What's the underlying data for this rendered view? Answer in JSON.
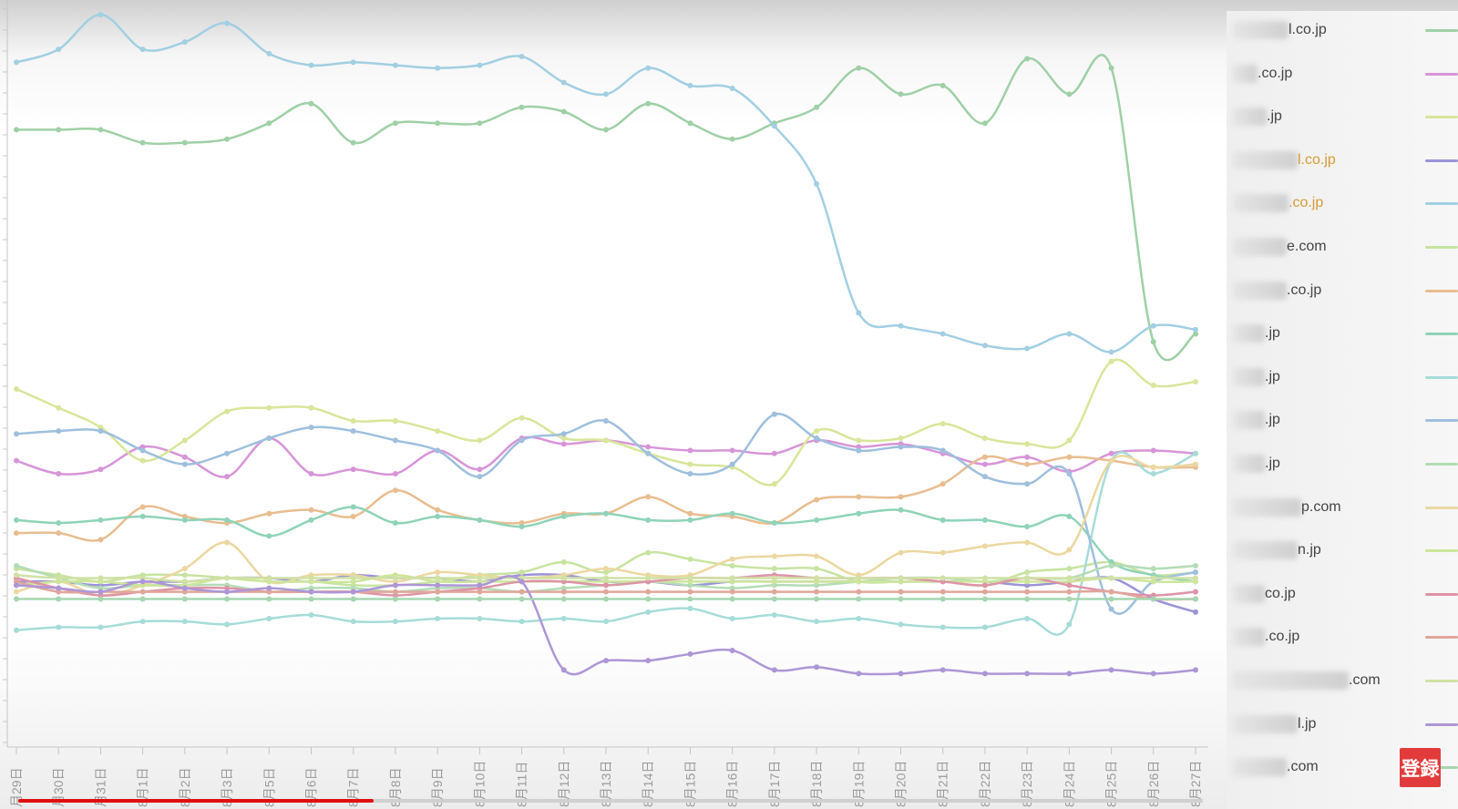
{
  "colors": {
    "accent": "#e23b3b",
    "progress": "#e01010"
  },
  "overlay": {
    "register_label": "登録",
    "progress_fraction": 0.3
  },
  "chart_data": {
    "type": "line",
    "title": "",
    "xlabel": "",
    "ylabel": "",
    "grid": false,
    "legend_placement": "right",
    "x": [
      "月29日",
      "月30日",
      "月31日",
      "8月1日",
      "8月2日",
      "8月3日",
      "8月5日",
      "8月6日",
      "8月7日",
      "8月8日",
      "8月9日",
      "8月10日",
      "8月11日",
      "8月12日",
      "8月13日",
      "8月14日",
      "8月15日",
      "8月16日",
      "8月17日",
      "8月18日",
      "8月19日",
      "8月20日",
      "8月21日",
      "8月22日",
      "8月23日",
      "8月24日",
      "8月25日",
      "8月26日",
      "8月27日"
    ],
    "ylim": [
      0,
      100
    ],
    "series": [
      {
        "name": "l.co.jp",
        "color": "#9fd0a6",
        "values": [
          83.1,
          83.1,
          83.1,
          81.3,
          81.3,
          81.8,
          84.0,
          86.7,
          81.3,
          84.0,
          84.0,
          84.0,
          86.2,
          85.6,
          83.1,
          86.7,
          84.0,
          81.8,
          84.0,
          86.2,
          91.6,
          88.0,
          89.2,
          84.0,
          92.9,
          88.0,
          91.6,
          53.8,
          54.9
        ]
      },
      {
        "name": ".co.jp",
        "color": "#d795d8",
        "values": [
          37.4,
          35.6,
          36.2,
          39.3,
          37.9,
          35.2,
          40.5,
          35.6,
          36.2,
          35.6,
          38.8,
          36.2,
          40.5,
          39.7,
          40.2,
          39.3,
          38.8,
          38.8,
          38.4,
          40.2,
          39.3,
          39.7,
          38.4,
          36.9,
          37.9,
          35.9,
          38.4,
          38.8,
          38.4
        ]
      },
      {
        "name": ".jp",
        "color": "#d7e69a",
        "values": [
          47.3,
          44.7,
          42.0,
          37.4,
          40.2,
          44.2,
          44.7,
          44.7,
          42.9,
          42.9,
          41.5,
          40.2,
          43.3,
          40.5,
          40.2,
          38.4,
          36.9,
          36.5,
          34.2,
          41.5,
          40.2,
          40.5,
          42.5,
          40.5,
          39.7,
          40.2,
          51.1,
          47.8,
          48.3
        ]
      },
      {
        "name": "l.co.jp",
        "color": "#9b93d8",
        "values": [
          20.7,
          20.7,
          20.2,
          20.7,
          20.7,
          21.2,
          21.2,
          20.7,
          21.6,
          21.2,
          21.2,
          20.7,
          21.6,
          21.6,
          20.7,
          20.7,
          20.2,
          20.7,
          20.7,
          20.7,
          20.7,
          20.7,
          20.7,
          20.7,
          20.2,
          20.7,
          21.2,
          18.3,
          16.5
        ]
      },
      {
        "name": ".co.jp",
        "color": "#a2cfe2",
        "values": [
          92.4,
          94.2,
          99.0,
          94.2,
          95.2,
          97.8,
          93.6,
          92.0,
          92.4,
          92.0,
          91.6,
          92.0,
          93.2,
          89.6,
          88.0,
          91.6,
          89.2,
          88.8,
          83.6,
          75.6,
          57.8,
          56.0,
          54.9,
          53.3,
          52.9,
          54.9,
          52.4,
          56.0,
          55.5
        ]
      },
      {
        "name": "e.com",
        "color": "#c7e3a0",
        "values": [
          22.5,
          21.6,
          20.7,
          21.6,
          21.6,
          21.2,
          20.7,
          20.7,
          20.2,
          20.2,
          20.7,
          21.6,
          22.0,
          23.4,
          22.0,
          24.7,
          23.8,
          22.9,
          22.5,
          22.5,
          20.7,
          20.7,
          20.7,
          20.2,
          22.0,
          22.5,
          23.4,
          21.6,
          22.0
        ]
      },
      {
        "name": ".co.jp",
        "color": "#e8bd90",
        "values": [
          27.4,
          27.4,
          26.5,
          31.0,
          29.7,
          28.8,
          30.1,
          30.6,
          29.7,
          33.3,
          30.6,
          29.2,
          28.8,
          30.1,
          30.1,
          32.4,
          30.1,
          29.7,
          28.8,
          32.0,
          32.4,
          32.4,
          34.2,
          37.9,
          36.9,
          37.9,
          37.4,
          36.5,
          36.5
        ]
      },
      {
        "name": ".jp",
        "color": "#8fd3b8",
        "values": [
          29.2,
          28.8,
          29.2,
          29.7,
          29.2,
          29.2,
          27.0,
          29.2,
          31.0,
          28.8,
          29.7,
          29.2,
          28.3,
          29.7,
          30.1,
          29.2,
          29.2,
          30.1,
          28.8,
          29.2,
          30.1,
          30.6,
          29.2,
          29.2,
          28.3,
          29.7,
          23.4,
          21.6,
          20.7
        ]
      },
      {
        "name": ".jp",
        "color": "#a6dcd8",
        "values": [
          14.0,
          14.4,
          14.4,
          15.2,
          15.2,
          14.8,
          15.6,
          16.1,
          15.2,
          15.2,
          15.6,
          15.6,
          15.2,
          15.6,
          15.2,
          16.5,
          17.0,
          15.6,
          16.1,
          15.2,
          15.6,
          14.8,
          14.4,
          14.4,
          15.6,
          14.8,
          37.4,
          35.6,
          38.4
        ]
      },
      {
        "name": ".jp",
        "color": "#9ebfdd",
        "values": [
          41.1,
          41.5,
          41.5,
          38.8,
          36.9,
          38.4,
          40.5,
          42.0,
          41.5,
          40.2,
          38.8,
          35.2,
          40.2,
          41.1,
          42.9,
          38.4,
          35.6,
          36.9,
          43.8,
          40.5,
          38.8,
          39.3,
          38.8,
          35.2,
          34.2,
          35.6,
          16.9,
          20.7,
          22.0
        ]
      },
      {
        "name": ".jp",
        "color": "#b4dcb6",
        "values": [
          22.9,
          21.2,
          19.8,
          20.2,
          20.2,
          20.2,
          19.3,
          19.8,
          19.8,
          19.3,
          19.8,
          19.8,
          19.3,
          19.8,
          20.2,
          20.7,
          20.2,
          19.8,
          20.2,
          20.2,
          20.7,
          21.2,
          21.2,
          20.7,
          21.2,
          21.2,
          22.9,
          22.5,
          22.9
        ]
      },
      {
        "name": "p.com",
        "color": "#ebd7a0",
        "values": [
          19.3,
          20.7,
          18.8,
          20.2,
          22.5,
          26.1,
          20.7,
          21.6,
          21.6,
          20.7,
          22.0,
          21.6,
          21.2,
          21.6,
          22.5,
          21.6,
          21.6,
          23.8,
          24.2,
          24.2,
          21.6,
          24.7,
          24.7,
          25.6,
          26.1,
          25.1,
          37.4,
          36.5,
          36.9
        ]
      },
      {
        "name": "n.jp",
        "color": "#cde69a",
        "values": [
          20.2,
          20.7,
          20.7,
          20.2,
          20.2,
          21.2,
          20.7,
          20.7,
          20.7,
          21.6,
          20.7,
          20.7,
          20.7,
          20.7,
          20.7,
          20.7,
          20.7,
          20.7,
          20.7,
          20.7,
          20.7,
          20.7,
          20.7,
          20.7,
          20.7,
          20.7,
          21.2,
          20.7,
          20.7
        ]
      },
      {
        "name": "co.jp",
        "color": "#de93a6",
        "values": [
          21.2,
          19.8,
          18.8,
          19.3,
          19.8,
          19.8,
          19.3,
          19.3,
          19.3,
          18.8,
          19.3,
          19.8,
          20.7,
          20.7,
          20.2,
          20.7,
          21.2,
          21.2,
          21.6,
          21.2,
          21.2,
          21.2,
          20.7,
          20.2,
          21.2,
          20.2,
          19.3,
          18.8,
          19.3
        ]
      },
      {
        "name": ".co.jp",
        "color": "#e0a69a",
        "values": [
          20.7,
          19.3,
          19.3,
          19.3,
          19.3,
          19.3,
          19.3,
          19.3,
          19.3,
          19.3,
          19.3,
          19.3,
          19.3,
          19.3,
          19.3,
          19.3,
          19.3,
          19.3,
          19.3,
          19.3,
          19.3,
          19.3,
          19.3,
          19.3,
          19.3,
          19.3,
          19.3,
          18.3,
          18.3
        ]
      },
      {
        "name": ".com",
        "color": "#d0e1a4",
        "values": [
          21.6,
          21.2,
          21.2,
          21.2,
          20.7,
          21.2,
          21.2,
          21.2,
          21.2,
          21.2,
          21.2,
          21.2,
          21.2,
          21.2,
          21.2,
          21.2,
          21.2,
          21.2,
          21.2,
          21.2,
          21.2,
          21.2,
          21.2,
          21.2,
          21.2,
          21.2,
          21.2,
          21.2,
          21.2
        ]
      },
      {
        "name": "l.jp",
        "color": "#ad96d6",
        "values": [
          20.2,
          19.8,
          19.3,
          20.7,
          19.8,
          19.3,
          19.8,
          19.3,
          19.3,
          20.2,
          20.2,
          20.2,
          20.7,
          8.5,
          9.8,
          9.8,
          10.7,
          11.2,
          8.5,
          8.9,
          8.0,
          8.0,
          8.5,
          8.0,
          8.0,
          8.0,
          8.5,
          8.0,
          8.5
        ]
      },
      {
        "name": ".com",
        "color": "#a6d6b0",
        "values": [
          18.3,
          18.3,
          18.3,
          18.3,
          18.3,
          18.3,
          18.3,
          18.3,
          18.3,
          18.3,
          18.3,
          18.3,
          18.3,
          18.3,
          18.3,
          18.3,
          18.3,
          18.3,
          18.3,
          18.3,
          18.3,
          18.3,
          18.3,
          18.3,
          18.3,
          18.3,
          18.3,
          18.3,
          18.3
        ]
      }
    ]
  }
}
